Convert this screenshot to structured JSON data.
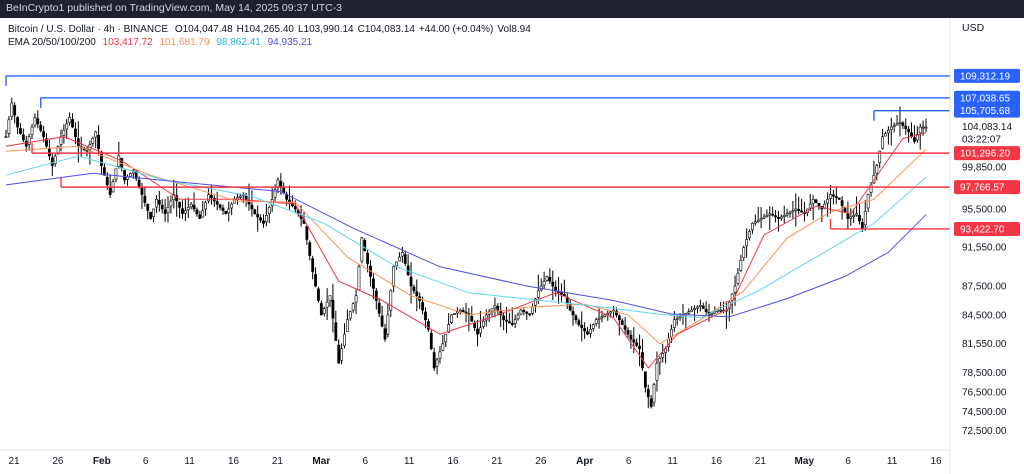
{
  "header": {
    "publisher_text": "BeInCrypto1 published on TradingView.com, May 14, 2025 09:37 UTC-3"
  },
  "legend": {
    "symbol": "Bitcoin / U.S. Dollar · 4h · BINANCE",
    "open_label": "O",
    "open": "104,047.48",
    "high_label": "H",
    "high": "104,265.40",
    "low_label": "L",
    "low": "103,990.14",
    "close_label": "C",
    "close": "104,083.14",
    "change": "+44.00 (+0.04%)",
    "vol_label": "Vol",
    "vol": "8.94",
    "ema_label": "EMA 20/50/100/200",
    "ema20": "103,417.72",
    "ema50": "101,681.79",
    "ema100": "98,862.41",
    "ema200": "94,935.21"
  },
  "currency": "USD",
  "colors": {
    "ema20": "#f23645",
    "ema50": "#ff9051",
    "ema100": "#5ad7f2",
    "ema200": "#4e4ee8",
    "resistance": "#2962ff",
    "support": "#f23645",
    "candle": "#000000",
    "price_tag": "#ffffff",
    "countdown_bg": "#ffffff"
  },
  "chart_data": {
    "type": "candlestick",
    "x_ticks": [
      "21",
      "26",
      "Feb",
      "6",
      "11",
      "16",
      "21",
      "Mar",
      "6",
      "11",
      "16",
      "21",
      "26",
      "Apr",
      "6",
      "11",
      "16",
      "21",
      "May",
      "6",
      "11",
      "16"
    ],
    "y_ticks": [
      "104,083.14",
      "99,850.00",
      "95,500.00",
      "91,550.00",
      "87,500.00",
      "84,500.00",
      "81,550.00",
      "78,500.00",
      "76,500.00",
      "74,500.00",
      "72,500.00"
    ],
    "ylim": [
      71000,
      112000
    ],
    "price_labels": {
      "current": "104,083.14",
      "countdown": "03:22:07"
    },
    "levels": [
      {
        "price": 109312.19,
        "label": "109,312.19",
        "kind": "resistance"
      },
      {
        "price": 107038.65,
        "label": "107,038.65",
        "kind": "resistance"
      },
      {
        "price": 105705.68,
        "label": "105,705.68",
        "kind": "resistance"
      },
      {
        "price": 101296.2,
        "label": "101,296.20",
        "kind": "support"
      },
      {
        "price": 97766.57,
        "label": "97,766.57",
        "kind": "support"
      },
      {
        "price": 93422.7,
        "label": "93,422.70",
        "kind": "support"
      }
    ],
    "price_path": [
      [
        0,
        103000
      ],
      [
        2,
        106500
      ],
      [
        4,
        104000
      ],
      [
        7,
        102000
      ],
      [
        10,
        105000
      ],
      [
        13,
        103000
      ],
      [
        16,
        100000
      ],
      [
        19,
        103000
      ],
      [
        22,
        105000
      ],
      [
        25,
        102000
      ],
      [
        28,
        101500
      ],
      [
        31,
        103500
      ],
      [
        33,
        100000
      ],
      [
        36,
        97000
      ],
      [
        39,
        101000
      ],
      [
        41,
        98500
      ],
      [
        44,
        99500
      ],
      [
        47,
        97000
      ],
      [
        50,
        94500
      ],
      [
        52,
        96500
      ],
      [
        55,
        95000
      ],
      [
        58,
        97000
      ],
      [
        61,
        95000
      ],
      [
        64,
        96000
      ],
      [
        67,
        94500
      ],
      [
        70,
        97000
      ],
      [
        73,
        96000
      ],
      [
        76,
        95000
      ],
      [
        79,
        96500
      ],
      [
        82,
        97000
      ],
      [
        86,
        95000
      ],
      [
        89,
        94000
      ],
      [
        92,
        96500
      ],
      [
        94,
        98500
      ],
      [
        97,
        96500
      ],
      [
        100,
        95500
      ],
      [
        103,
        94000
      ],
      [
        106,
        89000
      ],
      [
        109,
        84500
      ],
      [
        112,
        86500
      ],
      [
        115,
        79500
      ],
      [
        118,
        84000
      ],
      [
        121,
        86500
      ],
      [
        123,
        92500
      ],
      [
        126,
        88500
      ],
      [
        128,
        86000
      ],
      [
        131,
        82000
      ],
      [
        134,
        89500
      ],
      [
        137,
        91000
      ],
      [
        140,
        87500
      ],
      [
        143,
        86000
      ],
      [
        146,
        83000
      ],
      [
        148,
        79000
      ],
      [
        151,
        81500
      ],
      [
        154,
        84500
      ],
      [
        157,
        85000
      ],
      [
        160,
        84500
      ],
      [
        163,
        82500
      ],
      [
        166,
        84500
      ],
      [
        169,
        85500
      ],
      [
        172,
        84000
      ],
      [
        175,
        83500
      ],
      [
        178,
        85000
      ],
      [
        181,
        84500
      ],
      [
        184,
        87000
      ],
      [
        187,
        88500
      ],
      [
        190,
        87000
      ],
      [
        193,
        86500
      ],
      [
        195,
        85000
      ],
      [
        198,
        83500
      ],
      [
        201,
        82500
      ],
      [
        204,
        84000
      ],
      [
        207,
        84500
      ],
      [
        210,
        85000
      ],
      [
        213,
        83500
      ],
      [
        216,
        82000
      ],
      [
        219,
        81000
      ],
      [
        221,
        77000
      ],
      [
        223,
        75000
      ],
      [
        225,
        79500
      ],
      [
        228,
        81000
      ],
      [
        231,
        84000
      ],
      [
        234,
        84500
      ],
      [
        237,
        85000
      ],
      [
        240,
        85500
      ],
      [
        243,
        84500
      ],
      [
        246,
        85000
      ],
      [
        249,
        85000
      ],
      [
        252,
        87500
      ],
      [
        255,
        91500
      ],
      [
        258,
        94000
      ],
      [
        261,
        94500
      ],
      [
        264,
        95000
      ],
      [
        267,
        94500
      ],
      [
        270,
        95000
      ],
      [
        273,
        95500
      ],
      [
        276,
        95000
      ],
      [
        279,
        96500
      ],
      [
        282,
        95500
      ],
      [
        285,
        97000
      ],
      [
        288,
        96500
      ],
      [
        291,
        94500
      ],
      [
        294,
        95000
      ],
      [
        296,
        93500
      ],
      [
        298,
        97000
      ],
      [
        301,
        100000
      ],
      [
        303,
        103000
      ],
      [
        306,
        104000
      ],
      [
        309,
        104500
      ],
      [
        312,
        103500
      ],
      [
        314,
        102500
      ],
      [
        316,
        104000
      ],
      [
        318,
        104000
      ]
    ],
    "ema_series": {
      "ema20": [
        [
          0,
          102000
        ],
        [
          20,
          103000
        ],
        [
          40,
          100500
        ],
        [
          60,
          96500
        ],
        [
          80,
          96500
        ],
        [
          100,
          96000
        ],
        [
          115,
          88000
        ],
        [
          130,
          86000
        ],
        [
          150,
          82500
        ],
        [
          170,
          84500
        ],
        [
          190,
          86800
        ],
        [
          210,
          84200
        ],
        [
          222,
          79000
        ],
        [
          232,
          82500
        ],
        [
          250,
          85200
        ],
        [
          262,
          92800
        ],
        [
          280,
          95800
        ],
        [
          292,
          95000
        ],
        [
          300,
          98500
        ],
        [
          310,
          102800
        ],
        [
          318,
          103400
        ]
      ],
      "ema50": [
        [
          0,
          101500
        ],
        [
          25,
          102000
        ],
        [
          50,
          99000
        ],
        [
          80,
          96300
        ],
        [
          100,
          96200
        ],
        [
          118,
          90500
        ],
        [
          140,
          86500
        ],
        [
          160,
          84500
        ],
        [
          180,
          85300
        ],
        [
          200,
          85600
        ],
        [
          215,
          84500
        ],
        [
          226,
          81500
        ],
        [
          240,
          84000
        ],
        [
          255,
          87000
        ],
        [
          270,
          92500
        ],
        [
          285,
          95200
        ],
        [
          300,
          96500
        ],
        [
          318,
          101700
        ]
      ],
      "ema100": [
        [
          0,
          99000
        ],
        [
          25,
          101000
        ],
        [
          55,
          98500
        ],
        [
          85,
          96800
        ],
        [
          110,
          94000
        ],
        [
          135,
          89500
        ],
        [
          160,
          86800
        ],
        [
          185,
          86000
        ],
        [
          210,
          85200
        ],
        [
          225,
          84600
        ],
        [
          240,
          84200
        ],
        [
          260,
          87000
        ],
        [
          280,
          90500
        ],
        [
          300,
          94000
        ],
        [
          318,
          98800
        ]
      ],
      "ema200": [
        [
          0,
          98000
        ],
        [
          30,
          99200
        ],
        [
          60,
          98300
        ],
        [
          95,
          97300
        ],
        [
          120,
          93500
        ],
        [
          150,
          89500
        ],
        [
          180,
          87500
        ],
        [
          210,
          86000
        ],
        [
          230,
          84600
        ],
        [
          250,
          84300
        ],
        [
          270,
          86200
        ],
        [
          290,
          88500
        ],
        [
          305,
          91000
        ],
        [
          318,
          94900
        ]
      ]
    }
  }
}
